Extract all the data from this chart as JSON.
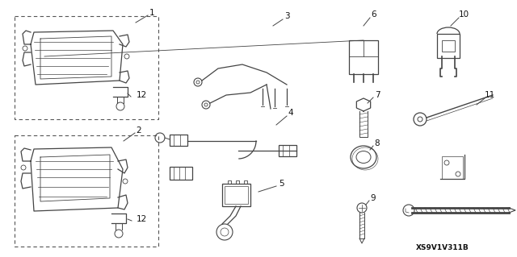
{
  "bg_color": "#ffffff",
  "diagram_code": "XS9V1V311B",
  "line_color": "#444444",
  "line_width": 0.9,
  "font_size": 7.5,
  "dashed_lw": 0.8,
  "label_color": "#111111"
}
